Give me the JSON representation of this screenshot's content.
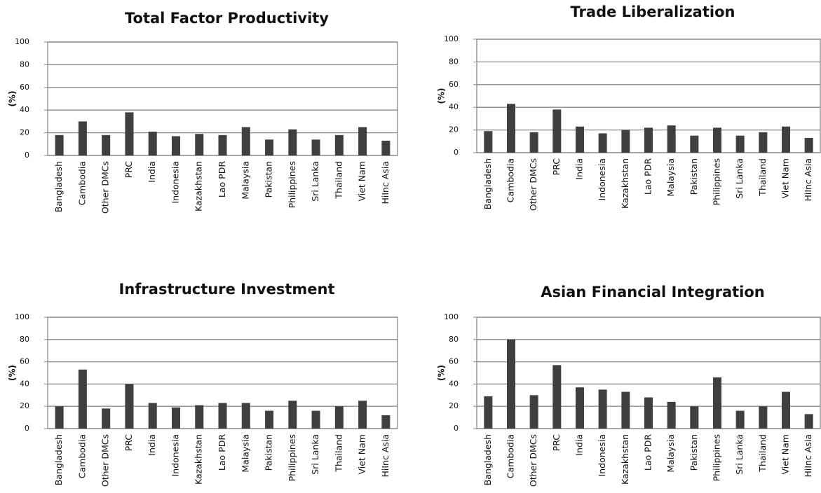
{
  "chart_data": [
    {
      "type": "bar",
      "title": "Total Factor Productivity",
      "y_label": "(%)",
      "color": "#3f3f3f",
      "grid": true,
      "categories": [
        "Bangladesh",
        "Cambodia",
        "Other DMCs",
        "PRC",
        "India",
        "Indonesia",
        "Kazakhstan",
        "Lao PDR",
        "Malaysia",
        "Pakistan",
        "Philippines",
        "Sri Lanka",
        "Thailand",
        "Viet Nam",
        "HiInc Asia"
      ],
      "values": [
        18,
        30,
        18,
        38,
        21,
        17,
        19,
        18,
        25,
        14,
        23,
        14,
        18,
        25,
        13
      ],
      "ylim": [
        0,
        100
      ],
      "yticks": [
        0,
        20,
        40,
        60,
        80,
        100
      ]
    },
    {
      "type": "bar",
      "title": "Trade Liberalization",
      "y_label": "(%)",
      "color": "#3f3f3f",
      "grid": true,
      "categories": [
        "Bangladesh",
        "Cambodia",
        "Other DMCs",
        "PRC",
        "India",
        "Indonesia",
        "Kazakhstan",
        "Lao PDR",
        "Malaysia",
        "Pakistan",
        "Philippines",
        "Sri Lanka",
        "Thailand",
        "Viet Nam",
        "HiInc Asia"
      ],
      "values": [
        19,
        43,
        18,
        38,
        23,
        17,
        20,
        22,
        24,
        15,
        22,
        15,
        18,
        23,
        13
      ],
      "ylim": [
        0,
        100
      ],
      "yticks": [
        0,
        20,
        40,
        60,
        80,
        100
      ]
    },
    {
      "type": "bar",
      "title": "Infrastructure Investment",
      "y_label": "(%)",
      "color": "#3f3f3f",
      "grid": true,
      "categories": [
        "Bangladesh",
        "Cambodia",
        "Other DMCs",
        "PRC",
        "India",
        "Indonesia",
        "Kazakhstan",
        "Lao PDR",
        "Malaysia",
        "Pakistan",
        "Philippines",
        "Sri Lanka",
        "Thailand",
        "Viet Nam",
        "HiInc Asia"
      ],
      "values": [
        20,
        53,
        18,
        40,
        23,
        19,
        21,
        23,
        23,
        16,
        25,
        16,
        20,
        25,
        12
      ],
      "ylim": [
        0,
        100
      ],
      "yticks": [
        0,
        20,
        40,
        60,
        80,
        100
      ]
    },
    {
      "type": "bar",
      "title": "Asian Financial Integration",
      "y_label": "(%)",
      "color": "#3f3f3f",
      "grid": true,
      "categories": [
        "Bangladesh",
        "Cambodia",
        "Other DMCs",
        "PRC",
        "India",
        "Indonesia",
        "Kazakhstan",
        "Lao PDR",
        "Malaysia",
        "Pakistan",
        "Philippines",
        "Sri Lanka",
        "Thailand",
        "Viet Nam",
        "HiInc Asia"
      ],
      "values": [
        29,
        80,
        30,
        57,
        37,
        35,
        33,
        28,
        24,
        20,
        46,
        16,
        20,
        33,
        13
      ],
      "ylim": [
        0,
        100
      ],
      "yticks": [
        0,
        20,
        40,
        60,
        80,
        100
      ]
    }
  ]
}
